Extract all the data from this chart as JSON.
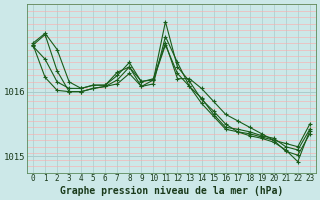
{
  "bg_color": "#cce8e8",
  "grid_color_v": "#aacccc",
  "grid_color_h": "#ffaaaa",
  "line_color": "#1a5c1a",
  "xlabel": "Graphe pression niveau de la mer (hPa)",
  "hours": [
    0,
    1,
    2,
    3,
    4,
    5,
    6,
    7,
    8,
    9,
    10,
    11,
    12,
    13,
    14,
    15,
    16,
    17,
    18,
    19,
    20,
    21,
    22,
    23
  ],
  "series": [
    [
      1016.75,
      1016.9,
      1016.65,
      1016.15,
      1016.05,
      1016.1,
      1016.1,
      1016.25,
      1016.45,
      1016.15,
      1016.2,
      1016.75,
      1016.2,
      1016.2,
      1016.05,
      1015.85,
      1015.65,
      1015.55,
      1015.45,
      1015.35,
      1015.25,
      1015.2,
      1015.15,
      1015.5
    ],
    [
      1016.7,
      1016.5,
      1016.15,
      1016.05,
      1016.05,
      1016.1,
      1016.1,
      1016.3,
      1016.38,
      1016.08,
      1016.12,
      1016.85,
      1016.45,
      1016.08,
      1015.9,
      1015.65,
      1015.45,
      1015.42,
      1015.38,
      1015.32,
      1015.28,
      1015.15,
      1015.1,
      1015.42
    ],
    [
      1016.72,
      1016.22,
      1016.02,
      1016.0,
      1016.0,
      1016.05,
      1016.08,
      1016.12,
      1016.28,
      1016.08,
      1016.18,
      1016.72,
      1016.28,
      1016.08,
      1015.82,
      1015.62,
      1015.42,
      1015.38,
      1015.35,
      1015.3,
      1015.25,
      1015.08,
      1015.02,
      1015.35
    ],
    [
      1016.72,
      1016.88,
      1016.32,
      1016.0,
      1016.0,
      1016.05,
      1016.08,
      1016.18,
      1016.38,
      1016.16,
      1016.18,
      1017.08,
      1016.38,
      1016.16,
      1015.88,
      1015.7,
      1015.5,
      1015.38,
      1015.32,
      1015.28,
      1015.22,
      1015.1,
      1014.92,
      1015.4
    ]
  ],
  "ylim": [
    1014.75,
    1017.35
  ],
  "yticks": [
    1015,
    1016
  ],
  "ytick_labels": [
    "1015",
    "1016"
  ],
  "xlim": [
    -0.5,
    23.5
  ],
  "xtick_fontsize": 5.5,
  "ytick_fontsize": 6.5,
  "xlabel_fontsize": 7.0
}
